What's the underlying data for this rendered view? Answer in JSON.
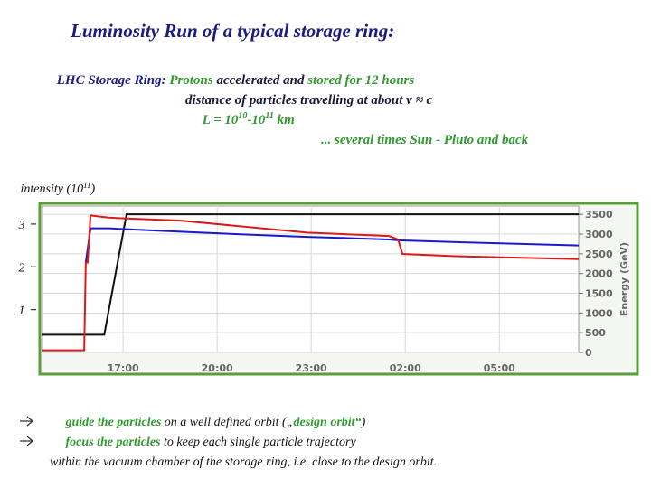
{
  "slide": {
    "title": "Luminosity Run of a typical storage ring:",
    "line1": [
      "LHC Storage Ring: ",
      "Protons",
      " accelerated and ",
      "stored for 12 hours"
    ],
    "line2": "distance of particles travelling at about v ≈ c",
    "line3": [
      "L = 10",
      "10",
      "-10",
      "11",
      " km"
    ],
    "line4": "... several times Sun - Pluto and back",
    "bullets": [
      [
        "guide the particles",
        " on a well defined orbit („",
        "design orbit“",
        ")"
      ],
      [
        "focus the particles",
        " to keep each single particle trajectory"
      ]
    ],
    "bullet_continuation": "within the vacuum chamber of the storage ring, i.e. close to the design orbit."
  },
  "chart_data": {
    "type": "line",
    "ylabel": [
      "intensity (10",
      "11",
      ")"
    ],
    "y2label": "Energy (GeV)",
    "xlim": [
      14.43,
      31.53
    ],
    "xticks": [
      {
        "value": 17,
        "label": "17:00"
      },
      {
        "value": 20,
        "label": "20:00"
      },
      {
        "value": 23,
        "label": "23:00"
      },
      {
        "value": 26,
        "label": "02:00"
      },
      {
        "value": 29,
        "label": "05:00"
      }
    ],
    "ylim": [
      0,
      3.42
    ],
    "yticks": [
      1,
      2,
      3
    ],
    "y2lim": [
      0,
      3710
    ],
    "y2ticks": [
      0,
      500,
      1000,
      1500,
      2000,
      2500,
      3000,
      3500
    ],
    "grid": true,
    "series": [
      {
        "color": "#111111",
        "axis": "y2",
        "x": [
          14.43,
          16.4,
          17.11,
          31.53
        ],
        "values": [
          450,
          450,
          3500,
          3500
        ]
      },
      {
        "color": "#1a1acc",
        "x": [
          15.81,
          15.96,
          16.54,
          17.11,
          18.84,
          21.73,
          22.88,
          25.48,
          25.77,
          27.5,
          31.53
        ],
        "values": [
          2.1,
          2.9,
          2.9,
          2.88,
          2.82,
          2.73,
          2.7,
          2.64,
          2.62,
          2.58,
          2.5
        ]
      },
      {
        "color": "#dd1a1a",
        "x": [
          14.43,
          15.76,
          15.81,
          15.87,
          15.96,
          16.54,
          17.11,
          18.84,
          21.73,
          22.88,
          25.48,
          25.77,
          25.91,
          27.5,
          31.53
        ],
        "values": [
          0.05,
          0.05,
          2.1,
          2.1,
          3.2,
          3.15,
          3.13,
          3.08,
          2.88,
          2.8,
          2.72,
          2.64,
          2.3,
          2.25,
          2.18
        ]
      }
    ]
  }
}
